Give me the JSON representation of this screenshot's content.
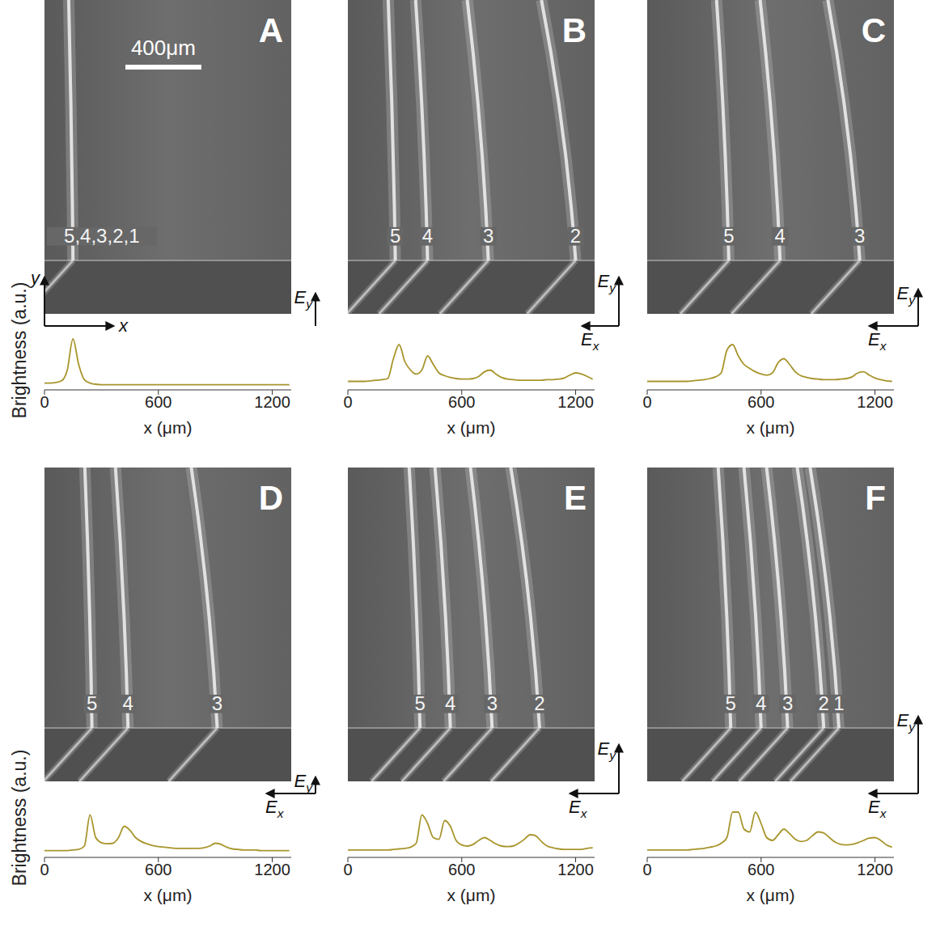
{
  "chart_data": [
    {
      "type": "line",
      "title": "A",
      "xlabel": "x (μm)",
      "ylabel": "Brightness (a.u.)",
      "color": "#a8952c",
      "xlim": [
        0,
        1300
      ],
      "xticks": [
        0,
        600,
        1200
      ],
      "ylim": [
        0,
        10
      ],
      "tick_labels": "x",
      "x": [
        0,
        30,
        60,
        90,
        120,
        150,
        180,
        210,
        240,
        270,
        300,
        330,
        360,
        390,
        420,
        450,
        480,
        510,
        540,
        570,
        600,
        630,
        660,
        690,
        720,
        750,
        780,
        810,
        840,
        870,
        900,
        930,
        960,
        990,
        1020,
        1050,
        1080,
        1110,
        1140,
        1170,
        1200,
        1230,
        1260,
        1290
      ],
      "values": [
        1.2,
        1.2,
        1.3,
        1.6,
        3.5,
        9.0,
        4.5,
        1.8,
        1.2,
        1.0,
        0.9,
        0.9,
        0.9,
        0.9,
        0.9,
        0.9,
        0.9,
        0.9,
        0.9,
        0.9,
        0.9,
        0.9,
        0.9,
        0.9,
        0.9,
        0.9,
        0.9,
        0.9,
        0.9,
        0.9,
        0.9,
        0.9,
        0.9,
        0.9,
        0.9,
        0.9,
        0.9,
        0.9,
        0.9,
        0.9,
        0.9,
        0.9,
        0.9,
        0.9
      ],
      "streams": [
        {
          "label": "5,4,3,2,1",
          "x": 150
        }
      ],
      "fields": [
        {
          "label": "Ey",
          "magnitude": 0.4
        }
      ],
      "scale_bar": {
        "label": "400μm",
        "length": 400
      },
      "coordinate_axes": [
        "x",
        "y"
      ]
    },
    {
      "type": "line",
      "title": "B",
      "xlabel": "x (μm)",
      "color": "#a8952c",
      "xlim": [
        0,
        1300
      ],
      "xticks": [
        0,
        600,
        1200
      ],
      "ylim": [
        0,
        10
      ],
      "tick_labels": "x",
      "x": [
        0,
        30,
        60,
        90,
        120,
        150,
        180,
        210,
        240,
        270,
        300,
        330,
        360,
        390,
        420,
        450,
        480,
        510,
        540,
        570,
        600,
        630,
        660,
        690,
        720,
        750,
        780,
        810,
        840,
        870,
        900,
        930,
        960,
        990,
        1020,
        1050,
        1080,
        1110,
        1140,
        1170,
        1200,
        1230,
        1260,
        1290
      ],
      "values": [
        1.5,
        1.5,
        1.5,
        1.5,
        1.6,
        1.7,
        1.8,
        2.0,
        5.5,
        8.0,
        5.0,
        3.5,
        2.8,
        3.5,
        6.0,
        4.5,
        3.0,
        2.5,
        2.2,
        2.0,
        1.9,
        1.9,
        2.0,
        2.4,
        3.2,
        3.5,
        2.8,
        2.2,
        1.9,
        1.8,
        1.7,
        1.7,
        1.7,
        1.7,
        1.7,
        1.8,
        1.8,
        1.9,
        2.1,
        2.6,
        3.0,
        2.8,
        2.4,
        1.9
      ],
      "streams": [
        {
          "label": "5",
          "x": 250
        },
        {
          "label": "4",
          "x": 420
        },
        {
          "label": "3",
          "x": 740
        },
        {
          "label": "2",
          "x": 1200
        }
      ],
      "fields": [
        {
          "label": "Ex",
          "magnitude": 0.45
        },
        {
          "label": "Ey",
          "magnitude": 0.6
        }
      ]
    },
    {
      "type": "line",
      "title": "C",
      "xlabel": "x (μm)",
      "color": "#a8952c",
      "xlim": [
        0,
        1300
      ],
      "xticks": [
        0,
        600,
        1200
      ],
      "ylim": [
        0,
        10
      ],
      "tick_labels": "x",
      "x": [
        0,
        30,
        60,
        90,
        120,
        150,
        180,
        210,
        240,
        270,
        300,
        330,
        360,
        390,
        420,
        450,
        480,
        510,
        540,
        570,
        600,
        630,
        660,
        690,
        720,
        750,
        780,
        810,
        840,
        870,
        900,
        930,
        960,
        990,
        1020,
        1050,
        1080,
        1110,
        1140,
        1170,
        1200,
        1230,
        1260,
        1290
      ],
      "values": [
        1.5,
        1.5,
        1.5,
        1.5,
        1.5,
        1.5,
        1.5,
        1.5,
        1.6,
        1.7,
        1.8,
        2.0,
        2.3,
        3.0,
        7.0,
        8.0,
        6.0,
        4.5,
        3.8,
        3.2,
        2.8,
        2.6,
        3.0,
        4.8,
        5.5,
        4.5,
        3.2,
        2.5,
        2.2,
        2.0,
        1.9,
        1.8,
        1.8,
        1.8,
        1.9,
        2.0,
        2.3,
        3.0,
        3.2,
        2.6,
        2.1,
        1.8,
        1.6,
        1.5
      ],
      "streams": [
        {
          "label": "5",
          "x": 430
        },
        {
          "label": "4",
          "x": 700
        },
        {
          "label": "3",
          "x": 1120
        }
      ],
      "fields": [
        {
          "label": "Ex",
          "magnitude": 0.6
        },
        {
          "label": "Ey",
          "magnitude": 0.45
        }
      ]
    },
    {
      "type": "line",
      "title": "D",
      "xlabel": "x (μm)",
      "ylabel": "Brightness (a.u.)",
      "color": "#a8952c",
      "xlim": [
        0,
        1300
      ],
      "xticks": [
        0,
        600,
        1200
      ],
      "ylim": [
        0,
        10
      ],
      "tick_labels": "x",
      "x": [
        0,
        30,
        60,
        90,
        120,
        150,
        180,
        210,
        240,
        270,
        300,
        330,
        360,
        390,
        420,
        450,
        480,
        510,
        540,
        570,
        600,
        630,
        660,
        690,
        720,
        750,
        780,
        810,
        840,
        870,
        900,
        930,
        960,
        990,
        1020,
        1050,
        1080,
        1110,
        1140,
        1170,
        1200,
        1230,
        1260,
        1290
      ],
      "values": [
        1.2,
        1.2,
        1.2,
        1.2,
        1.2,
        1.3,
        1.4,
        2.0,
        7.5,
        3.5,
        2.6,
        2.4,
        2.5,
        3.5,
        5.5,
        4.8,
        3.5,
        2.8,
        2.4,
        2.1,
        1.9,
        1.8,
        1.7,
        1.6,
        1.6,
        1.6,
        1.6,
        1.6,
        1.7,
        2.0,
        2.5,
        2.3,
        1.8,
        1.5,
        1.4,
        1.3,
        1.3,
        1.3,
        1.2,
        1.2,
        1.2,
        1.2,
        1.2,
        1.2
      ],
      "streams": [
        {
          "label": "5",
          "x": 250
        },
        {
          "label": "4",
          "x": 440
        },
        {
          "label": "3",
          "x": 910
        }
      ],
      "fields": [
        {
          "label": "Ex",
          "magnitude": 0.6
        },
        {
          "label": "Ey",
          "magnitude": 0.2
        }
      ]
    },
    {
      "type": "line",
      "title": "E",
      "xlabel": "x (μm)",
      "color": "#a8952c",
      "xlim": [
        0,
        1300
      ],
      "xticks": [
        0,
        600,
        1200
      ],
      "ylim": [
        0,
        10
      ],
      "tick_labels": "x",
      "x": [
        0,
        30,
        60,
        90,
        120,
        150,
        180,
        210,
        240,
        270,
        300,
        330,
        360,
        390,
        420,
        450,
        480,
        510,
        540,
        570,
        600,
        630,
        660,
        690,
        720,
        750,
        780,
        810,
        840,
        870,
        900,
        930,
        960,
        990,
        1020,
        1050,
        1080,
        1110,
        1140,
        1170,
        1200,
        1230,
        1260,
        1290
      ],
      "values": [
        1.3,
        1.3,
        1.3,
        1.3,
        1.3,
        1.3,
        1.3,
        1.3,
        1.4,
        1.5,
        1.6,
        1.8,
        2.5,
        7.5,
        6.0,
        3.5,
        3.2,
        6.5,
        5.5,
        3.0,
        2.2,
        2.0,
        2.3,
        3.0,
        3.5,
        3.0,
        2.4,
        2.0,
        1.9,
        2.0,
        2.5,
        3.2,
        4.0,
        3.8,
        2.8,
        2.0,
        1.7,
        1.5,
        1.4,
        1.4,
        1.4,
        1.4,
        1.6,
        1.7
      ],
      "streams": [
        {
          "label": "5",
          "x": 380
        },
        {
          "label": "4",
          "x": 540
        },
        {
          "label": "3",
          "x": 760
        },
        {
          "label": "2",
          "x": 1010
        }
      ],
      "fields": [
        {
          "label": "Ex",
          "magnitude": 0.6
        },
        {
          "label": "Ey",
          "magnitude": 0.6
        }
      ]
    },
    {
      "type": "line",
      "title": "F",
      "xlabel": "x (μm)",
      "color": "#a8952c",
      "xlim": [
        0,
        1300
      ],
      "xticks": [
        0,
        600,
        1200
      ],
      "ylim": [
        0,
        10
      ],
      "tick_labels": "x",
      "x": [
        0,
        30,
        60,
        90,
        120,
        150,
        180,
        210,
        240,
        270,
        300,
        330,
        360,
        390,
        420,
        450,
        480,
        510,
        540,
        570,
        600,
        630,
        660,
        690,
        720,
        750,
        780,
        810,
        840,
        870,
        900,
        930,
        960,
        990,
        1020,
        1050,
        1080,
        1110,
        1140,
        1170,
        1200,
        1230,
        1260,
        1290
      ],
      "values": [
        1.3,
        1.3,
        1.3,
        1.3,
        1.3,
        1.3,
        1.3,
        1.3,
        1.4,
        1.5,
        1.6,
        1.8,
        2.0,
        2.5,
        3.5,
        8.0,
        8.0,
        5.0,
        4.5,
        8.0,
        6.0,
        3.5,
        3.0,
        4.0,
        5.0,
        4.2,
        3.2,
        2.8,
        3.0,
        3.8,
        4.5,
        4.3,
        3.5,
        2.7,
        2.3,
        2.2,
        2.3,
        2.6,
        3.0,
        3.4,
        3.5,
        3.0,
        2.2,
        1.8
      ],
      "streams": [
        {
          "label": "5",
          "x": 440
        },
        {
          "label": "4",
          "x": 600
        },
        {
          "label": "3",
          "x": 740
        },
        {
          "label": "2",
          "x": 930
        },
        {
          "label": "1",
          "x": 1010
        }
      ],
      "fields": [
        {
          "label": "Ex",
          "magnitude": 0.6
        },
        {
          "label": "Ey",
          "magnitude": 0.95
        }
      ]
    }
  ]
}
